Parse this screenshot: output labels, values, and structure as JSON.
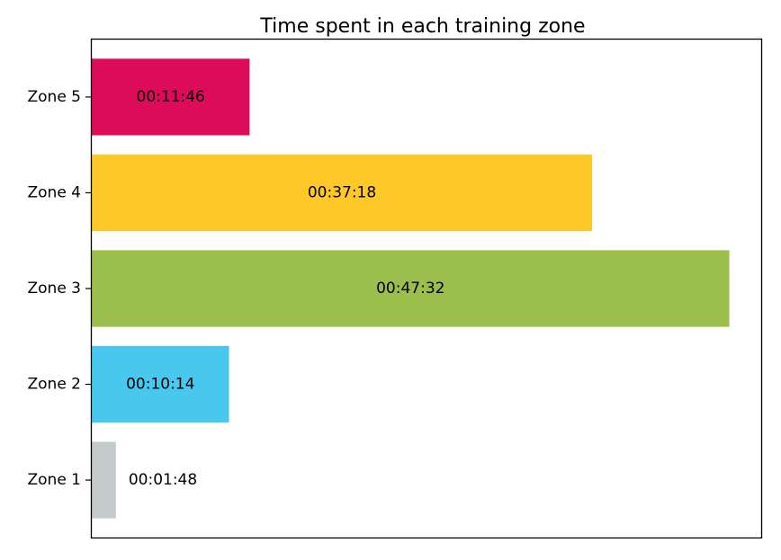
{
  "chart_data": {
    "type": "bar",
    "orientation": "horizontal",
    "title": "Time spent in each training zone",
    "xlabel": "",
    "ylabel": "",
    "x_axis_visible": false,
    "grid": false,
    "categories": [
      "Zone 1",
      "Zone 2",
      "Zone 3",
      "Zone 4",
      "Zone 5"
    ],
    "values": [
      108,
      614,
      2852,
      2238,
      706
    ],
    "value_unit": "seconds",
    "labels": [
      "00:01:48",
      "00:10:14",
      "00:47:32",
      "00:37:18",
      "00:11:46"
    ],
    "colors": [
      "#c4cccb",
      "#48c8ee",
      "#9cbe4d",
      "#fec828",
      "#dc0c58"
    ]
  }
}
